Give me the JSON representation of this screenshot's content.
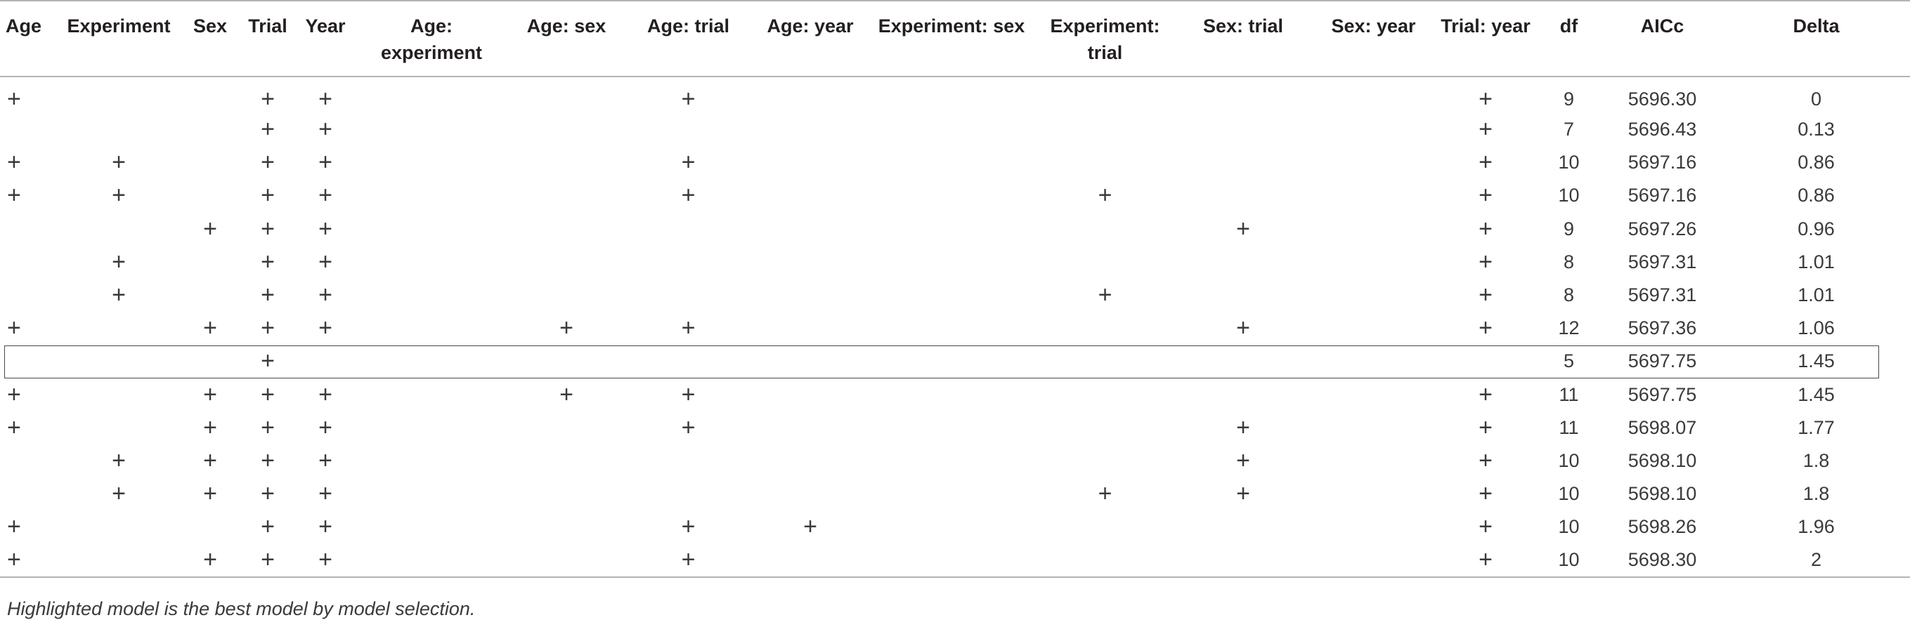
{
  "columns": [
    "Age",
    "Experiment",
    "Sex",
    "Trial",
    "Year",
    "Age: experiment",
    "Age: sex",
    "Age: trial",
    "Age: year",
    "Experiment: sex",
    "Experiment: trial",
    "Sex: trial",
    "Sex: year",
    "Trial: year",
    "df",
    "AICc",
    "Delta"
  ],
  "plus_symbol": "+",
  "rows": [
    {
      "terms": [
        1,
        0,
        0,
        1,
        1,
        0,
        0,
        1,
        0,
        0,
        0,
        0,
        0,
        1
      ],
      "df": "9",
      "aicc": "5696.30",
      "delta": "0"
    },
    {
      "terms": [
        0,
        0,
        0,
        1,
        1,
        0,
        0,
        0,
        0,
        0,
        0,
        0,
        0,
        1
      ],
      "df": "7",
      "aicc": "5696.43",
      "delta": "0.13"
    },
    {
      "terms": [
        1,
        1,
        0,
        1,
        1,
        0,
        0,
        1,
        0,
        0,
        0,
        0,
        0,
        1
      ],
      "df": "10",
      "aicc": "5697.16",
      "delta": "0.86"
    },
    {
      "terms": [
        1,
        1,
        0,
        1,
        1,
        0,
        0,
        1,
        0,
        0,
        1,
        0,
        0,
        1
      ],
      "df": "10",
      "aicc": "5697.16",
      "delta": "0.86"
    },
    {
      "terms": [
        0,
        0,
        1,
        1,
        1,
        0,
        0,
        0,
        0,
        0,
        0,
        1,
        0,
        1
      ],
      "df": "9",
      "aicc": "5697.26",
      "delta": "0.96"
    },
    {
      "terms": [
        0,
        1,
        0,
        1,
        1,
        0,
        0,
        0,
        0,
        0,
        0,
        0,
        0,
        1
      ],
      "df": "8",
      "aicc": "5697.31",
      "delta": "1.01"
    },
    {
      "terms": [
        0,
        1,
        0,
        1,
        1,
        0,
        0,
        0,
        0,
        0,
        1,
        0,
        0,
        1
      ],
      "df": "8",
      "aicc": "5697.31",
      "delta": "1.01"
    },
    {
      "terms": [
        1,
        0,
        1,
        1,
        1,
        0,
        1,
        1,
        0,
        0,
        0,
        1,
        0,
        1
      ],
      "df": "12",
      "aicc": "5697.36",
      "delta": "1.06"
    },
    {
      "terms": [
        0,
        0,
        0,
        1,
        0,
        0,
        0,
        0,
        0,
        0,
        0,
        0,
        0,
        0
      ],
      "df": "5",
      "aicc": "5697.75",
      "delta": "1.45",
      "highlighted": true
    },
    {
      "terms": [
        1,
        0,
        1,
        1,
        1,
        0,
        1,
        1,
        0,
        0,
        0,
        0,
        0,
        1
      ],
      "df": "11",
      "aicc": "5697.75",
      "delta": "1.45"
    },
    {
      "terms": [
        1,
        0,
        1,
        1,
        1,
        0,
        0,
        1,
        0,
        0,
        0,
        1,
        0,
        1
      ],
      "df": "11",
      "aicc": "5698.07",
      "delta": "1.77"
    },
    {
      "terms": [
        0,
        1,
        1,
        1,
        1,
        0,
        0,
        0,
        0,
        0,
        0,
        1,
        0,
        1
      ],
      "df": "10",
      "aicc": "5698.10",
      "delta": "1.8"
    },
    {
      "terms": [
        0,
        1,
        1,
        1,
        1,
        0,
        0,
        0,
        0,
        0,
        1,
        1,
        0,
        1
      ],
      "df": "10",
      "aicc": "5698.10",
      "delta": "1.8"
    },
    {
      "terms": [
        1,
        0,
        0,
        1,
        1,
        0,
        0,
        1,
        1,
        0,
        0,
        0,
        0,
        1
      ],
      "df": "10",
      "aicc": "5698.26",
      "delta": "1.96"
    },
    {
      "terms": [
        1,
        0,
        1,
        1,
        1,
        0,
        0,
        1,
        0,
        0,
        0,
        0,
        0,
        1
      ],
      "df": "10",
      "aicc": "5698.30",
      "delta": "2"
    }
  ],
  "footnote": "Highlighted model is the best model by model selection."
}
